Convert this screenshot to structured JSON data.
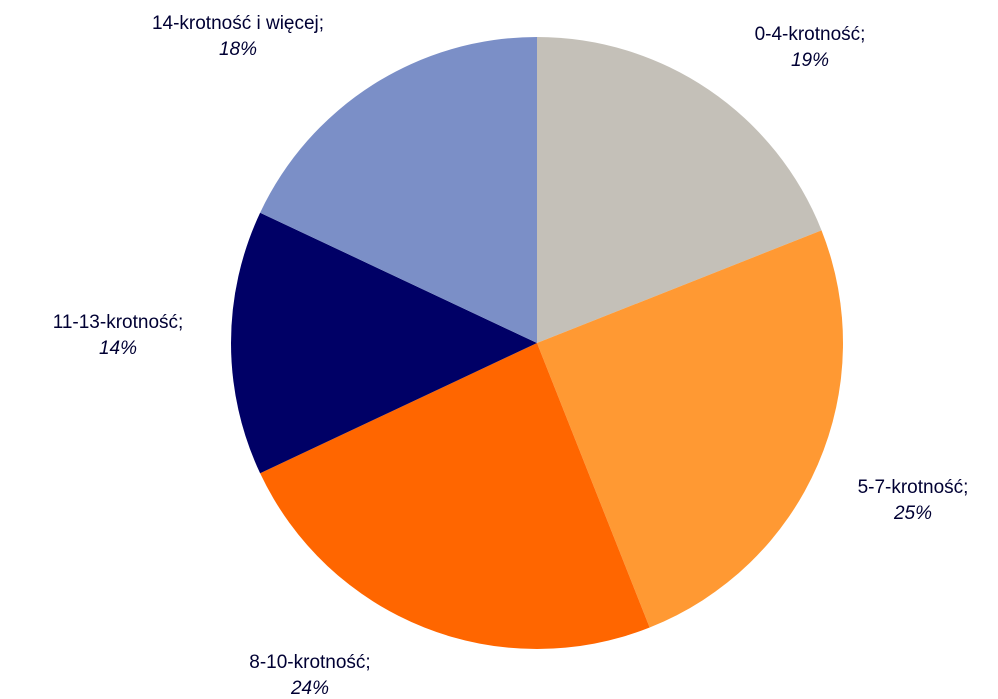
{
  "chart_data": {
    "type": "pie",
    "categories": [
      "0-4-krotność;",
      "5-7-krotność;",
      "8-10-krotność;",
      "11-13-krotność;",
      "14-krotność i więcej;"
    ],
    "values": [
      19,
      25,
      24,
      14,
      18
    ],
    "value_labels": [
      "19%",
      "25%",
      "24%",
      "14%",
      "18%"
    ],
    "colors": [
      "#c4c0b8",
      "#ff9933",
      "#ff6600",
      "#000066",
      "#7b8fc7"
    ]
  }
}
